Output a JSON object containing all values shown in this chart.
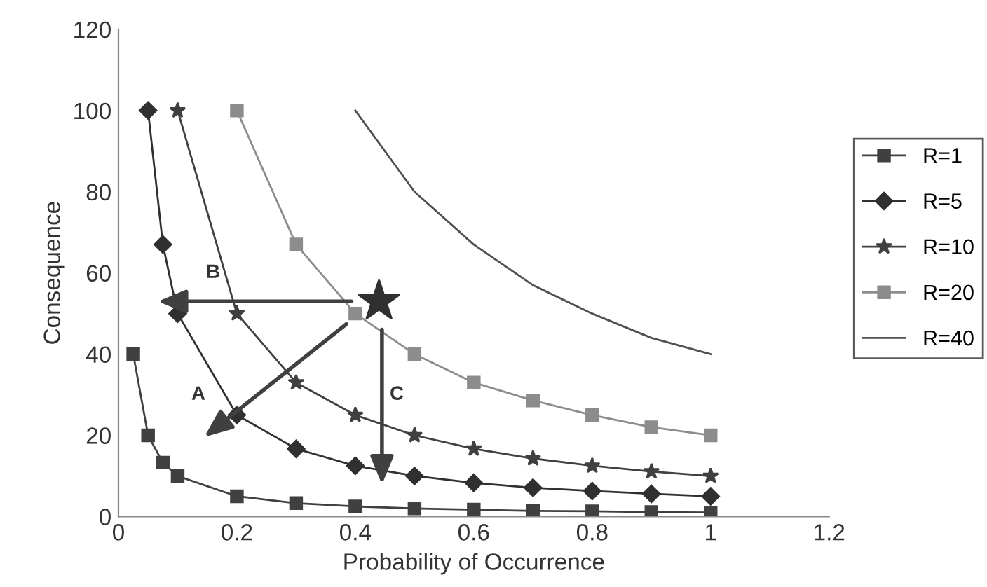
{
  "chart_data": {
    "type": "line",
    "xlabel": "Probability of Occurrence",
    "ylabel": "Consequence",
    "xlim": [
      0,
      1.2
    ],
    "xticks": [
      0,
      0.2,
      0.4,
      0.6,
      0.8,
      1,
      1.2
    ],
    "ylim": [
      0,
      120
    ],
    "yticks": [
      0,
      20,
      40,
      60,
      80,
      100,
      120
    ],
    "grid": false,
    "legend": "right",
    "series": [
      {
        "name": "R=1",
        "color": "#404040",
        "marker": "square",
        "x": [
          0.025,
          0.05,
          0.075,
          0.1,
          0.2,
          0.3,
          0.4,
          0.5,
          0.6,
          0.7,
          0.8,
          0.9,
          1
        ],
        "values": [
          40,
          20,
          13.3,
          10,
          5,
          3.3,
          2.5,
          2,
          1.7,
          1.4,
          1.3,
          1.1,
          1
        ]
      },
      {
        "name": "R=5",
        "color": "#303030",
        "marker": "diamond",
        "x": [
          0.05,
          0.075,
          0.1,
          0.2,
          0.3,
          0.4,
          0.5,
          0.6,
          0.7,
          0.8,
          0.9,
          1
        ],
        "values": [
          100,
          67,
          50,
          25,
          16.7,
          12.5,
          10,
          8.3,
          7.1,
          6.3,
          5.6,
          5
        ]
      },
      {
        "name": "R=10",
        "color": "#404040",
        "marker": "star",
        "x": [
          0.1,
          0.2,
          0.3,
          0.4,
          0.5,
          0.6,
          0.7,
          0.8,
          0.9,
          1
        ],
        "values": [
          100,
          50,
          33,
          25,
          20,
          16.7,
          14.3,
          12.5,
          11.1,
          10
        ]
      },
      {
        "name": "R=20",
        "color": "#8c8c8c",
        "marker": "square",
        "x": [
          0.2,
          0.3,
          0.4,
          0.5,
          0.6,
          0.7,
          0.8,
          0.9,
          1
        ],
        "values": [
          100,
          67,
          50,
          40,
          33,
          28.6,
          25,
          22,
          20
        ]
      },
      {
        "name": "R=40",
        "color": "#505050",
        "marker": "none",
        "x": [
          0.4,
          0.5,
          0.6,
          0.7,
          0.8,
          0.9,
          1
        ],
        "values": [
          100,
          80,
          67,
          57,
          50,
          44,
          40
        ]
      },
      {
        "type": "scatter",
        "color": "#303030",
        "marker": "star",
        "x": [
          0.44
        ],
        "values": [
          53
        ]
      }
    ],
    "annotations": [
      "B",
      "A",
      "C"
    ]
  }
}
